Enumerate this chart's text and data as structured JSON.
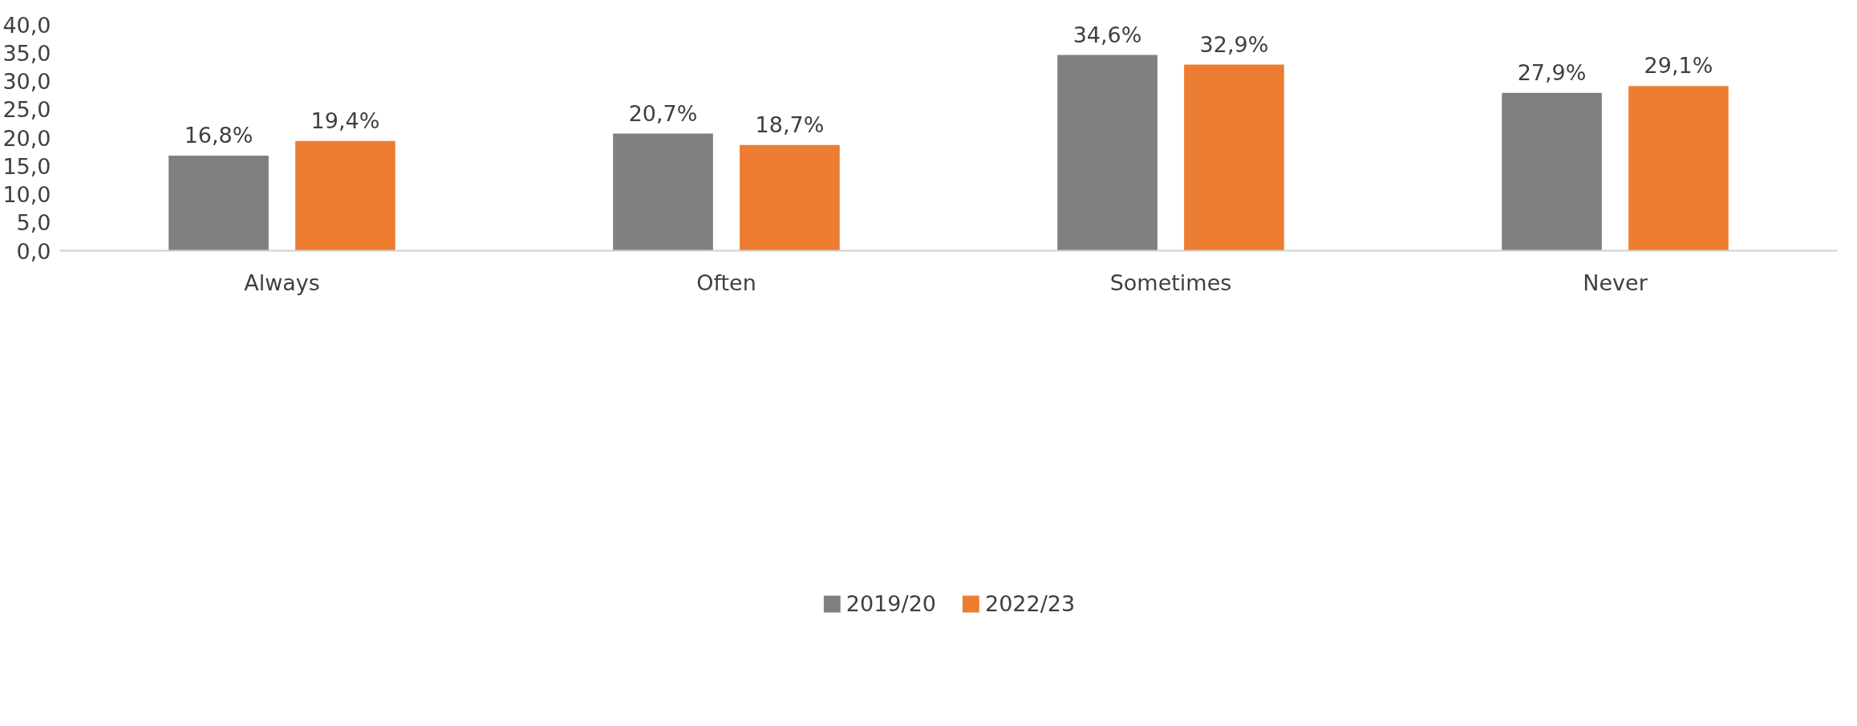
{
  "chart_data": {
    "type": "bar",
    "categories": [
      "Always",
      "Often",
      "Sometimes",
      "Never"
    ],
    "series": [
      {
        "name": "2019/20",
        "color": "#808080",
        "values": [
          16.8,
          20.7,
          34.6,
          27.9
        ],
        "value_labels": [
          "16,8%",
          "20,7%",
          "34,6%",
          "27,9%"
        ]
      },
      {
        "name": "2022/23",
        "color": "#ed7d31",
        "values": [
          19.4,
          18.7,
          32.9,
          29.1
        ],
        "value_labels": [
          "19,4%",
          "18,7%",
          "32,9%",
          "29,1%"
        ]
      }
    ],
    "ylim": [
      0,
      40
    ],
    "yticks": [
      {
        "value": 0,
        "label": "0,0"
      },
      {
        "value": 5,
        "label": "5,0"
      },
      {
        "value": 10,
        "label": "10,0"
      },
      {
        "value": 15,
        "label": "15,0"
      },
      {
        "value": 20,
        "label": "20,0"
      },
      {
        "value": 25,
        "label": "25,0"
      },
      {
        "value": 30,
        "label": "30,0"
      },
      {
        "value": 35,
        "label": "35,0"
      },
      {
        "value": 40,
        "label": "40,0"
      }
    ],
    "grid": false,
    "legend": "bottom"
  }
}
